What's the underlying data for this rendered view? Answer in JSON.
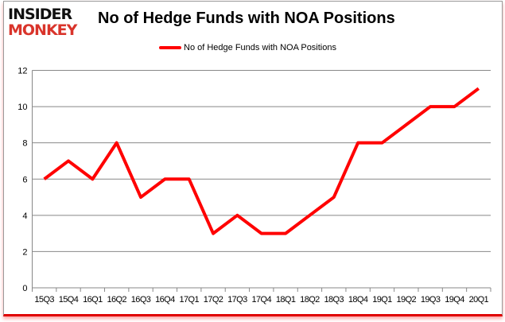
{
  "logo": {
    "line1": "INSIDER",
    "line2": "MONKEY"
  },
  "chart_data": {
    "type": "line",
    "title": "No of Hedge Funds with NOA Positions",
    "categories": [
      "15Q3",
      "15Q4",
      "16Q1",
      "16Q2",
      "16Q3",
      "16Q4",
      "17Q1",
      "17Q2",
      "17Q3",
      "17Q4",
      "18Q1",
      "18Q2",
      "18Q3",
      "18Q4",
      "19Q1",
      "19Q2",
      "19Q3",
      "19Q4",
      "20Q1"
    ],
    "series": [
      {
        "name": "No of Hedge Funds with NOA Positions",
        "values": [
          6,
          7,
          6,
          8,
          5,
          6,
          6,
          3,
          4,
          3,
          3,
          4,
          5,
          8,
          8,
          9,
          10,
          10,
          11
        ],
        "color": "#ff0000"
      }
    ],
    "ylim": [
      0,
      12
    ],
    "yticks": [
      0,
      2,
      4,
      6,
      8,
      10,
      12
    ],
    "grid": true,
    "legend_position": "top"
  }
}
